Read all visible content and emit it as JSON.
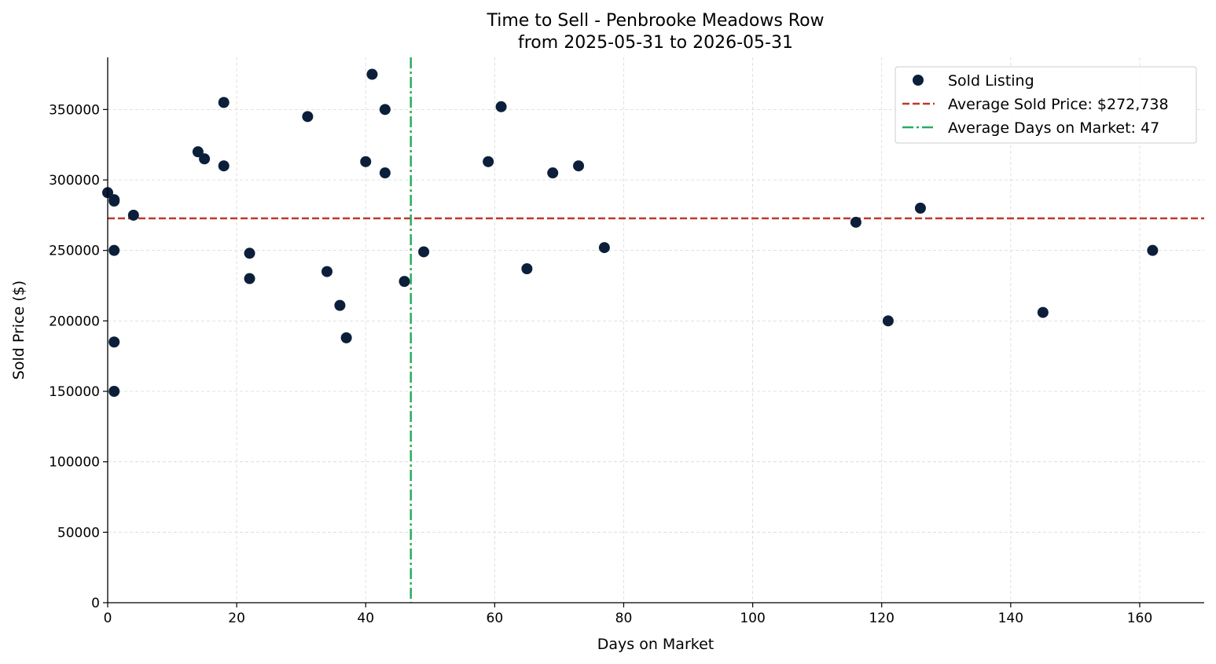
{
  "chart_data": {
    "type": "scatter",
    "title": "Time to Sell - Penbrooke Meadows Row",
    "subtitle": "from 2025-05-31 to 2026-05-31",
    "xlabel": "Days on Market",
    "ylabel": "Sold Price ($)",
    "xlim": [
      0,
      170
    ],
    "ylim": [
      0,
      387000
    ],
    "xticks": [
      0,
      20,
      40,
      60,
      80,
      100,
      120,
      140,
      160
    ],
    "yticks": [
      0,
      50000,
      100000,
      150000,
      200000,
      250000,
      300000,
      350000
    ],
    "grid": true,
    "legend_position": "top-right",
    "series": [
      {
        "name": "Sold Listing",
        "color": "#0b1f3a",
        "points": [
          [
            0,
            291000
          ],
          [
            1,
            286000
          ],
          [
            1,
            285000
          ],
          [
            1,
            250000
          ],
          [
            1,
            185000
          ],
          [
            1,
            150000
          ],
          [
            4,
            275000
          ],
          [
            14,
            320000
          ],
          [
            15,
            315000
          ],
          [
            18,
            355000
          ],
          [
            18,
            310000
          ],
          [
            22,
            248000
          ],
          [
            22,
            230000
          ],
          [
            31,
            345000
          ],
          [
            34,
            235000
          ],
          [
            36,
            211000
          ],
          [
            37,
            188000
          ],
          [
            40,
            313000
          ],
          [
            41,
            375000
          ],
          [
            43,
            350000
          ],
          [
            43,
            305000
          ],
          [
            46,
            228000
          ],
          [
            49,
            249000
          ],
          [
            59,
            313000
          ],
          [
            61,
            352000
          ],
          [
            65,
            237000
          ],
          [
            69,
            305000
          ],
          [
            73,
            310000
          ],
          [
            77,
            252000
          ],
          [
            116,
            270000
          ],
          [
            121,
            200000
          ],
          [
            126,
            280000
          ],
          [
            145,
            206000
          ],
          [
            162,
            250000
          ]
        ]
      }
    ],
    "reference_lines": [
      {
        "name": "Average Sold Price: $272,738",
        "orientation": "horizontal",
        "value": 272738,
        "color": "#c0392b",
        "style": "dashed"
      },
      {
        "name": "Average Days on Market: 47",
        "orientation": "vertical",
        "value": 47,
        "color": "#27ae60",
        "style": "dashdot"
      }
    ]
  }
}
